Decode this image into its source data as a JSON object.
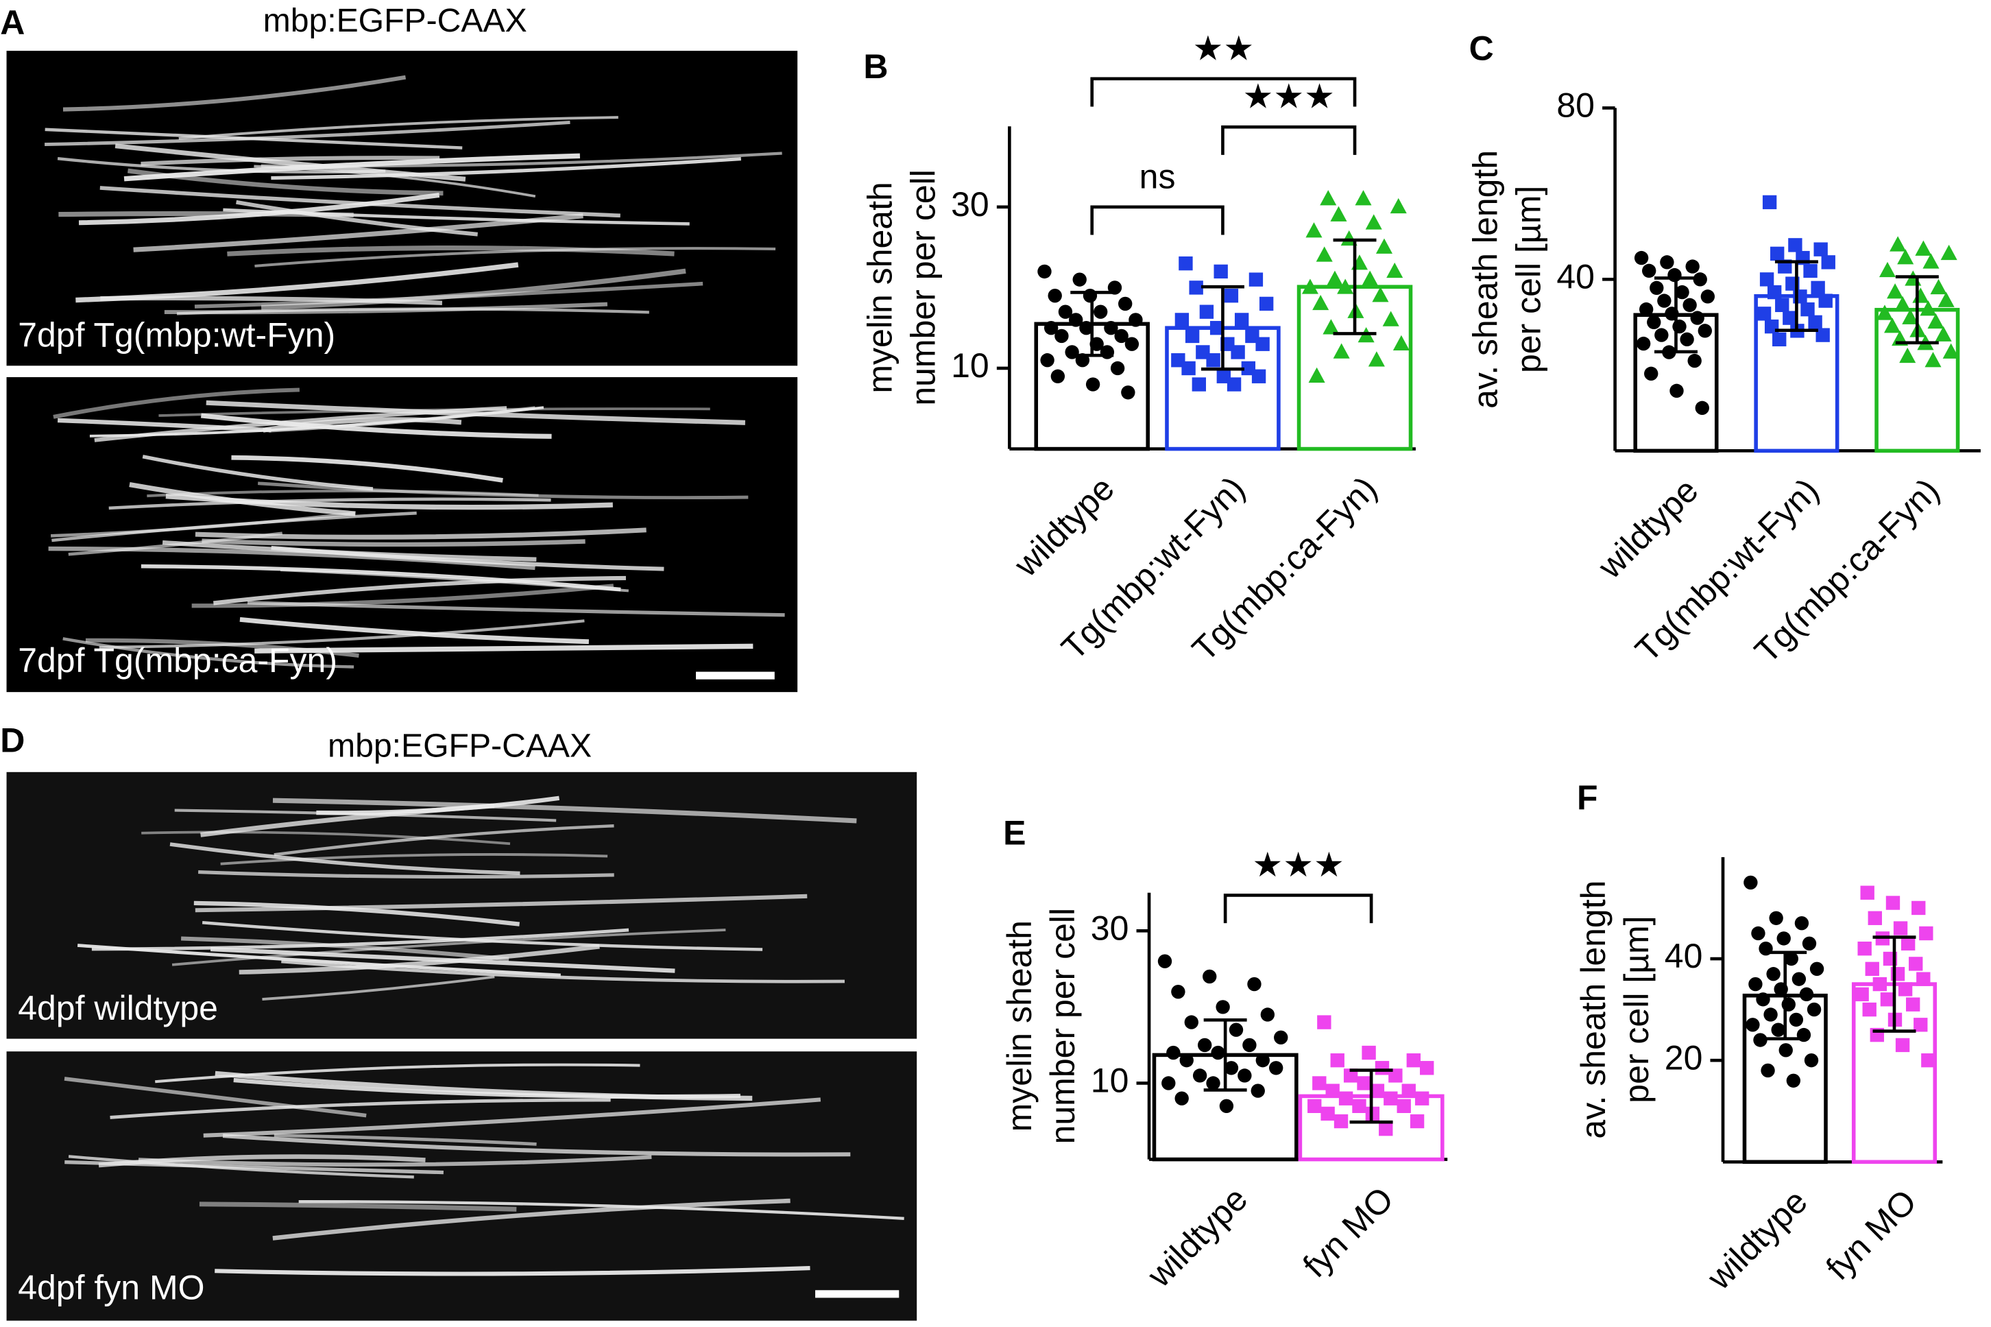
{
  "images": [
    {
      "panel": "A",
      "title": "mbp:EGFP-CAAX",
      "labels": [
        "7dpf Tg(mbp:wt-Fyn)",
        "7dpf Tg(mbp:ca-Fyn)"
      ]
    },
    {
      "panel": "D",
      "title": "mbp:EGFP-CAAX",
      "labels": [
        "4dpf wildtype",
        "4dpf fyn MO"
      ]
    }
  ],
  "chart_data": [
    {
      "type": "bar",
      "panel": "B",
      "ylabel": [
        "myelin sheath",
        "number per cell"
      ],
      "categories": [
        "wildtype",
        "Tg(mbp:wt-Fyn)",
        "Tg(mbp:ca-Fyn)"
      ],
      "colors": [
        "#000000",
        "#1f3fe6",
        "#22bb22"
      ],
      "markers": [
        "circle",
        "square",
        "triangle"
      ],
      "values": [
        15.5,
        15.0,
        20.1
      ],
      "errors": [
        3.9,
        5.1,
        5.8
      ],
      "points": [
        [
          22,
          21,
          20,
          19,
          19,
          18,
          17,
          17,
          16,
          16,
          15,
          15,
          15,
          14,
          14,
          13,
          13,
          12,
          12,
          11,
          11,
          10,
          9,
          8,
          7
        ],
        [
          23,
          22,
          21,
          20,
          19,
          18,
          17,
          16,
          16,
          15,
          14,
          14,
          13,
          13,
          12,
          12,
          11,
          11,
          10,
          10,
          9,
          9,
          8,
          8
        ],
        [
          31,
          31,
          30,
          29,
          28,
          27,
          26,
          25,
          24,
          23,
          22,
          21,
          21,
          20,
          20,
          19,
          18,
          17,
          16,
          15,
          14,
          13,
          12,
          11,
          9
        ]
      ],
      "ylim": [
        0,
        40
      ],
      "yticks": [
        10,
        30
      ],
      "brackets": [
        {
          "label": "ns",
          "between": [
            0,
            1
          ]
        },
        {
          "label": "★★★",
          "between": [
            1,
            2
          ]
        },
        {
          "label": "★★",
          "between": [
            0,
            2
          ]
        }
      ]
    },
    {
      "type": "bar",
      "panel": "C",
      "ylabel": [
        "av. sheath length",
        "per cell [µm]"
      ],
      "categories": [
        "wildtype",
        "Tg(mbp:wt-Fyn)",
        "Tg(mbp:ca-Fyn)"
      ],
      "colors": [
        "#000000",
        "#1f3fe6",
        "#22bb22"
      ],
      "markers": [
        "circle",
        "square",
        "triangle"
      ],
      "values": [
        31.7,
        36.1,
        32.9
      ],
      "errors": [
        8.6,
        8.0,
        7.7
      ],
      "points": [
        [
          45,
          44,
          43,
          42,
          41,
          40,
          38,
          37,
          36,
          35,
          34,
          33,
          32,
          31,
          30,
          29,
          28,
          27,
          26,
          25,
          23,
          21,
          18,
          14,
          10
        ],
        [
          58,
          48,
          47,
          46,
          45,
          44,
          43,
          42,
          40,
          39,
          38,
          37,
          36,
          35,
          34,
          33,
          32,
          31,
          30,
          29,
          28,
          27,
          26
        ],
        [
          48,
          47,
          46,
          45,
          44,
          42,
          40,
          38,
          37,
          36,
          35,
          34,
          33,
          32,
          31,
          30,
          29,
          28,
          27,
          26,
          25,
          23,
          22,
          21
        ]
      ],
      "ylim": [
        0,
        80
      ],
      "yticks": [
        40,
        80
      ],
      "brackets": []
    },
    {
      "type": "bar",
      "panel": "E",
      "ylabel": [
        "myelin sheath",
        "number per cell"
      ],
      "categories": [
        "wildtype",
        "fyn MO"
      ],
      "colors": [
        "#000000",
        "#ee44ee"
      ],
      "markers": [
        "circle",
        "square"
      ],
      "values": [
        13.7,
        8.3
      ],
      "errors": [
        4.6,
        3.4
      ],
      "points": [
        [
          26,
          24,
          23,
          22,
          20,
          19,
          18,
          17,
          16,
          15,
          15,
          14,
          14,
          13,
          13,
          12,
          12,
          11,
          11,
          10,
          10,
          9,
          8,
          7
        ],
        [
          18,
          14,
          13,
          13,
          12,
          12,
          11,
          11,
          10,
          10,
          9,
          9,
          9,
          8,
          8,
          8,
          7,
          7,
          7,
          6,
          6,
          5,
          5,
          4
        ]
      ],
      "ylim": [
        0,
        35
      ],
      "yticks": [
        10,
        30
      ],
      "brackets": [
        {
          "label": "★★★",
          "between": [
            0,
            1
          ]
        }
      ]
    },
    {
      "type": "bar",
      "panel": "F",
      "ylabel": [
        "av. sheath length",
        "per cell [µm]"
      ],
      "categories": [
        "wildtype",
        "fyn MO"
      ],
      "colors": [
        "#000000",
        "#ee44ee"
      ],
      "markers": [
        "circle",
        "square"
      ],
      "values": [
        32.75,
        35.0
      ],
      "errors": [
        8.5,
        9.25
      ],
      "points": [
        [
          55,
          48,
          47,
          45,
          44,
          43,
          42,
          40,
          38,
          37,
          36,
          35,
          34,
          33,
          32,
          31,
          30,
          29,
          28,
          27,
          26,
          25,
          24,
          22,
          20,
          18,
          16
        ],
        [
          53,
          51,
          50,
          48,
          46,
          45,
          44,
          43,
          42,
          40,
          39,
          38,
          37,
          36,
          35,
          34,
          33,
          32,
          31,
          30,
          28,
          27,
          25,
          23,
          20
        ]
      ],
      "ylim": [
        0,
        60
      ],
      "yticks": [
        20,
        40
      ],
      "brackets": []
    }
  ]
}
